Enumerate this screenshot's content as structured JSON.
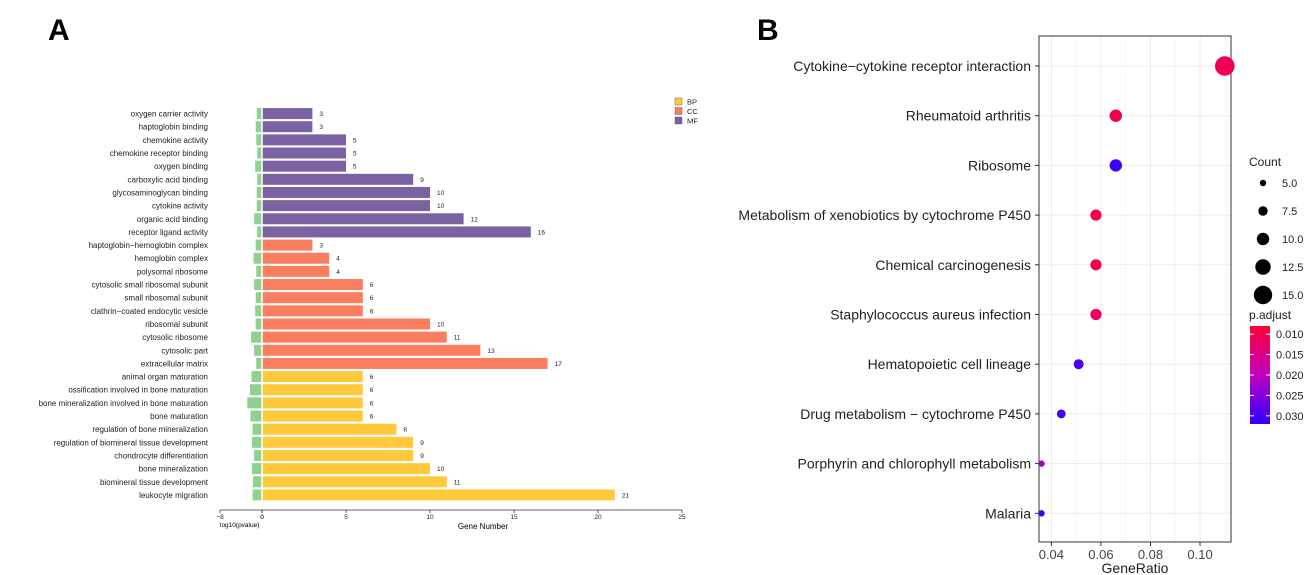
{
  "colors": {
    "BP": "#FFC93C",
    "CC": "#F97D5F",
    "MF": "#7B62A3",
    "pvalue_bar": "#8FD18F",
    "panel_bg": "#FFFFFF",
    "grid": "#EBEBEB",
    "axis": "#333333",
    "low_padj": "#FF0033",
    "high_padj": "#2E00FF"
  },
  "chart_data": [
    {
      "panel_label": "A",
      "type": "bar",
      "orientation": "horizontal",
      "categories": [
        "oxygen carrier activity",
        "haptoglobin binding",
        "chemokine activity",
        "chemokine receptor binding",
        "oxygen binding",
        "carboxylic acid binding",
        "glycosaminoglycan binding",
        "cytokine activity",
        "organic acid binding",
        "receptor ligand activity",
        "haptoglobin−hemoglobin complex",
        "hemoglobin complex",
        "polysomal ribosome",
        "cytosolic small ribosomal subunit",
        "small ribosomal subunit",
        "clathrin−coated endocytic vesicle",
        "ribosomal subunit",
        "cytosolic ribosome",
        "cytosolic part",
        "extracellular matrix",
        "animal organ maturation",
        "ossification involved in bone maturation",
        "bone mineralization involved in bone maturation",
        "bone maturation",
        "regulation of bone mineralization",
        "regulation of biomineral tissue development",
        "chondrocyte differentiation",
        "bone mineralization",
        "biomineral tissue development",
        "leukocyte migration"
      ],
      "groups": [
        "MF",
        "MF",
        "MF",
        "MF",
        "MF",
        "MF",
        "MF",
        "MF",
        "MF",
        "MF",
        "CC",
        "CC",
        "CC",
        "CC",
        "CC",
        "CC",
        "CC",
        "CC",
        "CC",
        "CC",
        "BP",
        "BP",
        "BP",
        "BP",
        "BP",
        "BP",
        "BP",
        "BP",
        "BP",
        "BP"
      ],
      "series": [
        {
          "name": "Gene Number",
          "values": [
            3,
            3,
            5,
            5,
            5,
            9,
            10,
            10,
            12,
            16,
            3,
            4,
            4,
            6,
            6,
            6,
            10,
            11,
            13,
            17,
            6,
            6,
            6,
            6,
            8,
            9,
            9,
            10,
            11,
            21
          ]
        },
        {
          "name": "log10(pvalue)",
          "values": [
            -1.0,
            -1.2,
            -1.1,
            -0.9,
            -1.3,
            -0.9,
            -1.0,
            -1.0,
            -1.5,
            -0.9,
            -1.2,
            -1.6,
            -1.1,
            -1.5,
            -1.2,
            -1.3,
            -1.2,
            -2.1,
            -1.5,
            -1.1,
            -2.0,
            -2.3,
            -2.8,
            -2.2,
            -1.8,
            -1.9,
            -1.5,
            -1.9,
            -1.7,
            -1.8
          ]
        }
      ],
      "legend": [
        "BP",
        "CC",
        "MF"
      ],
      "legend_position": "top-right",
      "xlabel": "Gene Number",
      "xlabel_left": "log10(pvalue)",
      "xlim": [
        0,
        25
      ],
      "xlim_left": [
        -8,
        0
      ],
      "xticks": [
        "0",
        "5",
        "10",
        "15",
        "20",
        "25"
      ],
      "xticks_left": [
        "−8",
        "0"
      ]
    },
    {
      "panel_label": "B",
      "type": "scatter",
      "categories": [
        "Cytokine−cytokine receptor interaction",
        "Rheumatoid arthritis",
        "Ribosome",
        "Metabolism of xenobiotics by cytochrome P450",
        "Chemical carcinogenesis",
        "Staphylococcus aureus infection",
        "Hematopoietic cell lineage",
        "Drug metabolism − cytochrome P450",
        "Porphyrin and chlorophyll metabolism",
        "Malaria"
      ],
      "x": [
        0.11,
        0.066,
        0.066,
        0.058,
        0.058,
        0.058,
        0.051,
        0.044,
        0.036,
        0.036
      ],
      "count": [
        16,
        10,
        10,
        9,
        9,
        9,
        8,
        7,
        5,
        5
      ],
      "p_adjust": [
        0.011,
        0.011,
        0.031,
        0.01,
        0.01,
        0.012,
        0.03,
        0.03,
        0.022,
        0.031
      ],
      "xlabel": "GeneRatio",
      "xlim": [
        0.035,
        0.1125
      ],
      "xticks": [
        "0.04",
        "0.06",
        "0.08",
        "0.10"
      ],
      "grid": true,
      "size_legend": {
        "title": "Count",
        "entries": [
          "5.0",
          "7.5",
          "10.0",
          "12.5",
          "15.0"
        ]
      },
      "color_legend": {
        "title": "p.adjust",
        "entries": [
          "0.010",
          "0.015",
          "0.020",
          "0.025",
          "0.030"
        ],
        "range": [
          0.008,
          0.032
        ]
      }
    }
  ]
}
